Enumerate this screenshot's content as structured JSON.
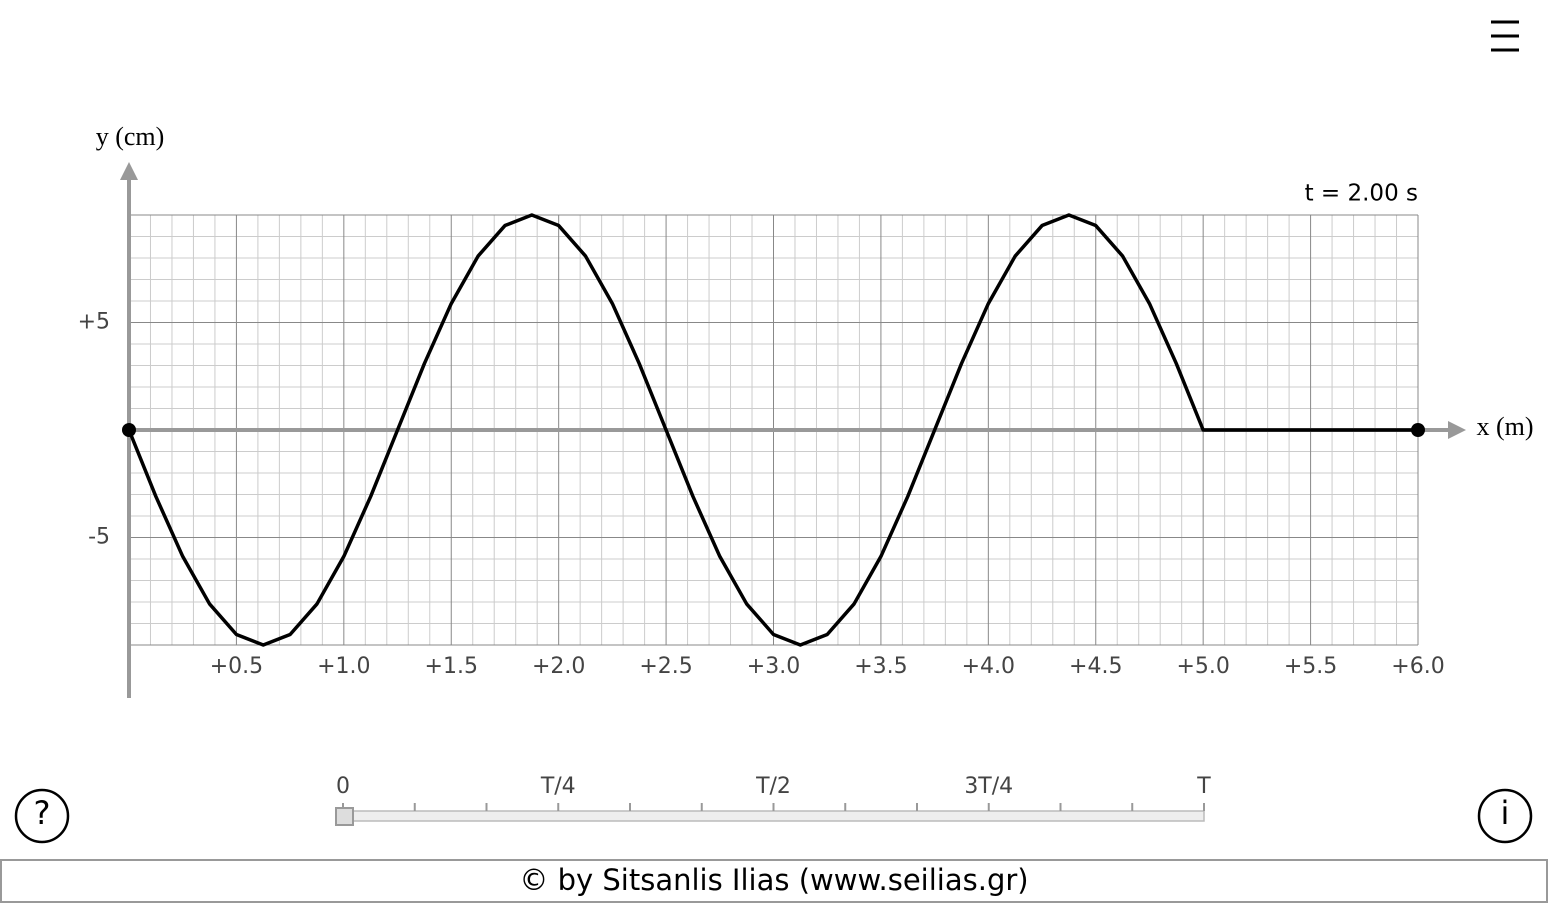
{
  "chart_data": {
    "type": "line",
    "y_label": "y (cm)",
    "x_label": "x (m)",
    "annotation": "t = 2.00 s",
    "x": [
      0,
      0.125,
      0.25,
      0.375,
      0.5,
      0.625,
      0.75,
      0.875,
      1.0,
      1.125,
      1.25,
      1.375,
      1.5,
      1.625,
      1.75,
      1.875,
      2.0,
      2.125,
      2.25,
      2.375,
      2.5,
      2.625,
      2.75,
      2.875,
      3.0,
      3.125,
      3.25,
      3.375,
      3.5,
      3.625,
      3.75,
      3.875,
      4.0,
      4.125,
      4.25,
      4.375,
      4.5,
      4.625,
      4.75,
      4.875,
      5.0,
      6.0
    ],
    "series": [
      {
        "color": "#000000",
        "values": [
          0,
          -3.09,
          -5.88,
          -8.09,
          -9.51,
          -10,
          -9.51,
          -8.09,
          -5.88,
          -3.09,
          0,
          3.09,
          5.88,
          8.09,
          9.51,
          10,
          9.51,
          8.09,
          5.88,
          3.09,
          0,
          -3.09,
          -5.88,
          -8.09,
          -9.51,
          -10,
          -9.51,
          -8.09,
          -5.88,
          -3.09,
          0,
          3.09,
          5.88,
          8.09,
          9.51,
          10,
          9.51,
          8.09,
          5.88,
          3.09,
          0,
          0
        ]
      }
    ],
    "xlim": [
      0,
      6
    ],
    "ylim": [
      -10,
      10
    ],
    "xticks": [
      {
        "value": 0.5,
        "label": "+0.5"
      },
      {
        "value": 1.0,
        "label": "+1.0"
      },
      {
        "value": 1.5,
        "label": "+1.5"
      },
      {
        "value": 2.0,
        "label": "+2.0"
      },
      {
        "value": 2.5,
        "label": "+2.5"
      },
      {
        "value": 3.0,
        "label": "+3.0"
      },
      {
        "value": 3.5,
        "label": "+3.5"
      },
      {
        "value": 4.0,
        "label": "+4.0"
      },
      {
        "value": 4.5,
        "label": "+4.5"
      },
      {
        "value": 5.0,
        "label": "+5.0"
      },
      {
        "value": 5.5,
        "label": "+5.5"
      },
      {
        "value": 6.0,
        "label": "+6.0"
      }
    ],
    "yticks": [
      {
        "value": 5,
        "label": "+5"
      },
      -5
    ],
    "grid": true
  },
  "slider": {
    "labels": [
      "0",
      "T/4",
      "T/2",
      "3T/4",
      "T"
    ]
  },
  "buttons": {
    "help": "?",
    "info": "i"
  },
  "footer": "© by Sitsanlis Ilias (www.seilias.gr)"
}
